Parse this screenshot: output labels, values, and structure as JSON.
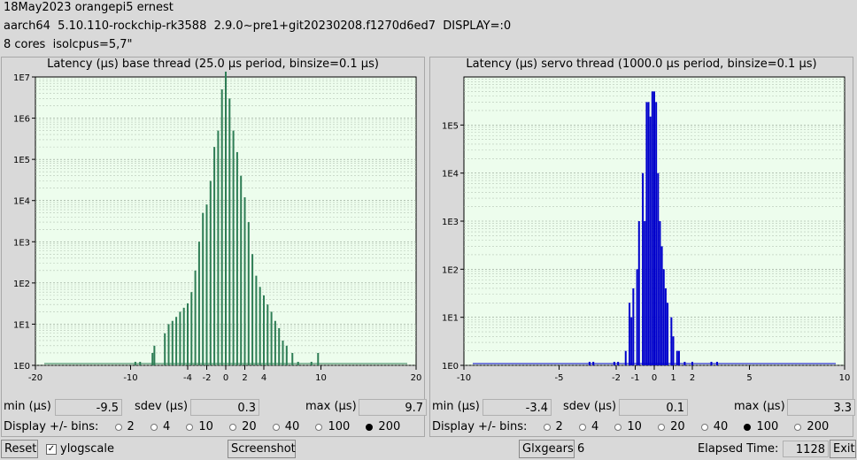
{
  "header": {
    "line1": "18May2023 orangepi5 ernest",
    "line2": "aarch64  5.10.110-rockchip-rk3588  2.9.0~pre1+git20230208.f1270d6ed7  DISPLAY=:0",
    "line3": "8 cores  isolcpus=5,7\""
  },
  "base": {
    "title": "Latency (µs) base thread (25.0 µs period, binsize=0.1 µs)",
    "color": "#2e7d55",
    "min_label": "min (µs)",
    "min_value": "-9.5",
    "sdev_label": "sdev (µs)",
    "sdev_value": "0.3",
    "max_label": "max (µs)",
    "max_value": "9.7",
    "bins_label": "Display +/- bins:",
    "bins_options": [
      "2",
      "4",
      "10",
      "20",
      "40",
      "100",
      "200"
    ],
    "bins_selected": "200"
  },
  "servo": {
    "title": "Latency (µs) servo thread (1000.0 µs period, binsize=0.1 µs)",
    "color": "#0000cc",
    "min_label": "min (µs)",
    "min_value": "-3.4",
    "sdev_label": "sdev (µs)",
    "sdev_value": "0.1",
    "max_label": "max (µs)",
    "max_value": "3.3",
    "bins_label": "Display +/- bins:",
    "bins_options": [
      "2",
      "4",
      "10",
      "20",
      "40",
      "100",
      "200"
    ],
    "bins_selected": "100"
  },
  "chart_data": [
    {
      "type": "bar",
      "xlim": [
        -20,
        20
      ],
      "xticks": [
        -20,
        -10,
        -4,
        -2,
        0,
        2,
        4,
        10,
        20
      ],
      "yscale": "log",
      "ylim": [
        1,
        10000000
      ],
      "yticks": [
        "1E0",
        "1E1",
        "1E2",
        "1E3",
        "1E4",
        "1E5",
        "1E6",
        "1E7"
      ],
      "x": [
        -9.5,
        -9.0,
        -7.7,
        -7.5,
        -6.4,
        -6.0,
        -5.6,
        -5.2,
        -4.8,
        -4.4,
        -4.0,
        -3.6,
        -3.2,
        -2.8,
        -2.4,
        -2.0,
        -1.6,
        -1.2,
        -0.8,
        -0.4,
        0.0,
        0.4,
        0.8,
        1.2,
        1.6,
        2.0,
        2.4,
        2.8,
        3.2,
        3.6,
        4.0,
        4.4,
        4.8,
        5.2,
        5.6,
        6.0,
        6.4,
        7.0,
        7.6,
        9.0,
        9.7
      ],
      "values": [
        1,
        1,
        2,
        3,
        6,
        10,
        12,
        15,
        20,
        25,
        32,
        60,
        200,
        1000,
        5000,
        8000,
        30000,
        200000,
        500000,
        5000000,
        15000000,
        3000000,
        500000,
        150000,
        40000,
        12000,
        3000,
        500,
        150,
        80,
        50,
        30,
        20,
        12,
        8,
        4,
        3,
        2,
        1,
        1,
        2
      ]
    },
    {
      "type": "bar",
      "xlim": [
        -10,
        10
      ],
      "xticks": [
        -10,
        -5,
        -2,
        -1,
        0,
        1,
        2,
        5,
        10
      ],
      "yscale": "log",
      "ylim": [
        1,
        1000000
      ],
      "yticks": [
        "1E0",
        "1E1",
        "1E2",
        "1E3",
        "1E4",
        "1E5"
      ],
      "x": [
        -3.4,
        -3.2,
        -2.1,
        -1.9,
        -1.5,
        -1.3,
        -1.2,
        -1.1,
        -0.9,
        -0.8,
        -0.6,
        -0.5,
        -0.4,
        -0.3,
        -0.2,
        -0.1,
        0.0,
        0.1,
        0.2,
        0.3,
        0.4,
        0.5,
        0.6,
        0.7,
        0.9,
        1.0,
        1.2,
        1.3,
        1.6,
        2.0,
        3.0,
        3.3
      ],
      "values": [
        1,
        1,
        1,
        1,
        2,
        20,
        10,
        40,
        100,
        1000,
        10000,
        1000,
        300000,
        300000,
        150000,
        500000,
        500000,
        300000,
        10000,
        1000,
        300,
        100,
        40,
        20,
        10,
        4,
        2,
        2,
        1,
        1,
        1,
        1
      ]
    }
  ]
}
